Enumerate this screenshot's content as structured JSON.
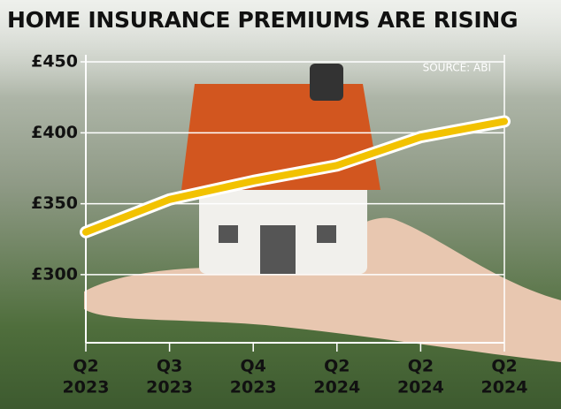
{
  "chart_data": {
    "type": "line",
    "title": "HOME INSURANCE PREMIUMS ARE RISING",
    "source": "SOURCE: ABI",
    "categories": [
      [
        "Q2",
        "2023"
      ],
      [
        "Q3",
        "2023"
      ],
      [
        "Q4",
        "2023"
      ],
      [
        "Q2",
        "2024"
      ],
      [
        "Q2",
        "2024"
      ],
      [
        "Q2",
        "2024"
      ]
    ],
    "series": [
      {
        "color": "#f2c200",
        "values": [
          330,
          353,
          366,
          377,
          397,
          408
        ]
      }
    ],
    "ylim": [
      252,
      455
    ],
    "yticks": [
      {
        "value": 300,
        "label": "£300"
      },
      {
        "value": 350,
        "label": "£350"
      },
      {
        "value": 400,
        "label": "£400"
      },
      {
        "value": 450,
        "label": "£450"
      }
    ],
    "grid": true
  }
}
